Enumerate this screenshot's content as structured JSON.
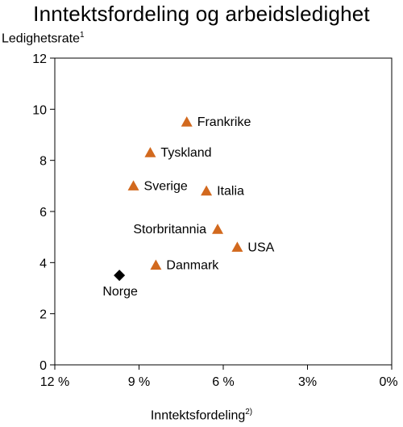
{
  "chart_data": {
    "type": "scatter",
    "title": "Inntektsfordeling og arbeidsledighet",
    "xlabel": "Inntektsfordeling",
    "xlabel_sup": "2)",
    "ylabel": "Ledighetsrate",
    "ylabel_sup": "1",
    "xlim": [
      12,
      0
    ],
    "ylim": [
      0,
      12
    ],
    "x_reversed": true,
    "x_ticks": [
      12,
      9,
      6,
      3,
      0
    ],
    "x_tick_labels": [
      "12 %",
      "9 %",
      "6 %",
      "3%",
      "0%"
    ],
    "y_ticks": [
      0,
      2,
      4,
      6,
      8,
      10,
      12
    ],
    "y_tick_labels": [
      "0",
      "2",
      "4",
      "6",
      "8",
      "10",
      "12"
    ],
    "grid": false,
    "points": [
      {
        "label": "Frankrike",
        "x": 7.3,
        "y": 9.5,
        "marker": "triangle",
        "color": "#d2691e",
        "label_pos": "right"
      },
      {
        "label": "Tyskland",
        "x": 8.6,
        "y": 8.3,
        "marker": "triangle",
        "color": "#d2691e",
        "label_pos": "right"
      },
      {
        "label": "Sverige",
        "x": 9.2,
        "y": 7.0,
        "marker": "triangle",
        "color": "#d2691e",
        "label_pos": "right"
      },
      {
        "label": "Italia",
        "x": 6.6,
        "y": 6.8,
        "marker": "triangle",
        "color": "#d2691e",
        "label_pos": "right"
      },
      {
        "label": "Storbritannia",
        "x": 6.2,
        "y": 5.3,
        "marker": "triangle",
        "color": "#d2691e",
        "label_pos": "left"
      },
      {
        "label": "USA",
        "x": 5.5,
        "y": 4.6,
        "marker": "triangle",
        "color": "#d2691e",
        "label_pos": "right"
      },
      {
        "label": "Danmark",
        "x": 8.4,
        "y": 3.9,
        "marker": "triangle",
        "color": "#d2691e",
        "label_pos": "right"
      },
      {
        "label": "Norge",
        "x": 9.7,
        "y": 3.5,
        "marker": "diamond",
        "color": "#000000",
        "label_pos": "below"
      }
    ]
  }
}
